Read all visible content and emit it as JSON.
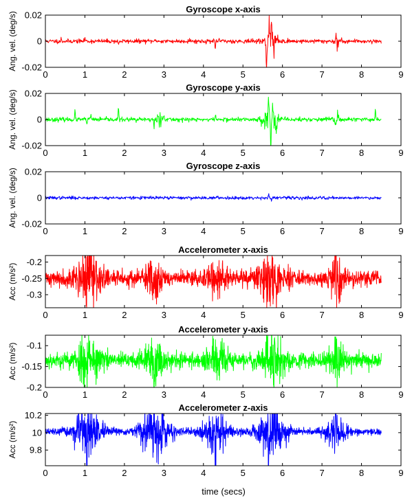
{
  "figure": {
    "xlabel": "time (secs)"
  },
  "chart_data": [
    {
      "type": "line",
      "title": "Gyroscope x-axis",
      "ylabel": "Ang. vel. (deg/s)",
      "xlim": [
        0,
        9
      ],
      "ylim": [
        -0.02,
        0.02
      ],
      "xticks": [
        "0",
        "1",
        "2",
        "3",
        "4",
        "5",
        "6",
        "7",
        "8",
        "9"
      ],
      "yticks": [
        {
          "v": 0.02,
          "label": "0.02"
        },
        {
          "v": 0,
          "label": "0"
        },
        {
          "v": -0.02,
          "label": "-0.02"
        }
      ],
      "color": "#ff0000",
      "signal": {
        "x_start": 0.0,
        "x_end": 8.5,
        "n": 900,
        "baseline": 0.0,
        "noise": 0.0008,
        "seed": 11,
        "spikes": [
          {
            "t": 0.4,
            "a": 0.002
          },
          {
            "t": 1.0,
            "a": 0.0025
          },
          {
            "t": 1.85,
            "a": -0.003
          },
          {
            "t": 2.8,
            "a": 0.0015
          },
          {
            "t": 3.65,
            "a": 0.0015
          },
          {
            "t": 4.3,
            "a": -0.007
          },
          {
            "t": 4.4,
            "a": 0.002
          },
          {
            "t": 5.6,
            "a": -0.019
          },
          {
            "t": 5.66,
            "a": 0.014
          },
          {
            "t": 5.72,
            "a": 0.018
          },
          {
            "t": 5.78,
            "a": -0.009
          },
          {
            "t": 5.85,
            "a": 0.005
          },
          {
            "t": 7.35,
            "a": 0.004
          },
          {
            "t": 7.4,
            "a": -0.004
          }
        ],
        "bursts": [
          {
            "t": 5.7,
            "w": 0.15,
            "a": 0.004
          },
          {
            "t": 7.38,
            "w": 0.08,
            "a": 0.002
          }
        ]
      }
    },
    {
      "type": "line",
      "title": "Gyroscope y-axis",
      "ylabel": "Ang. vel. (deg/s)",
      "xlim": [
        0,
        9
      ],
      "ylim": [
        -0.02,
        0.02
      ],
      "xticks": [
        "0",
        "1",
        "2",
        "3",
        "4",
        "5",
        "6",
        "7",
        "8",
        "9"
      ],
      "yticks": [
        {
          "v": 0.02,
          "label": "0.02"
        },
        {
          "v": 0,
          "label": "0"
        },
        {
          "v": -0.02,
          "label": "-0.02"
        }
      ],
      "color": "#00ff00",
      "signal": {
        "x_start": 0.0,
        "x_end": 8.5,
        "n": 900,
        "baseline": 0.0,
        "noise": 0.0008,
        "seed": 23,
        "spikes": [
          {
            "t": 0.75,
            "a": 0.006
          },
          {
            "t": 1.05,
            "a": -0.003
          },
          {
            "t": 1.15,
            "a": 0.004
          },
          {
            "t": 1.85,
            "a": 0.009
          },
          {
            "t": 2.3,
            "a": -0.002
          },
          {
            "t": 2.75,
            "a": -0.005
          },
          {
            "t": 2.9,
            "a": 0.004
          },
          {
            "t": 3.0,
            "a": 0.006
          },
          {
            "t": 4.3,
            "a": 0.004
          },
          {
            "t": 5.65,
            "a": 0.016
          },
          {
            "t": 5.7,
            "a": -0.014
          },
          {
            "t": 5.76,
            "a": 0.01
          },
          {
            "t": 5.85,
            "a": -0.005
          },
          {
            "t": 7.35,
            "a": -0.004
          },
          {
            "t": 7.4,
            "a": 0.005
          },
          {
            "t": 8.35,
            "a": 0.008
          }
        ],
        "bursts": [
          {
            "t": 2.85,
            "w": 0.12,
            "a": 0.002
          },
          {
            "t": 5.7,
            "w": 0.2,
            "a": 0.004
          },
          {
            "t": 7.38,
            "w": 0.1,
            "a": 0.002
          }
        ]
      }
    },
    {
      "type": "line",
      "title": "Gyroscope z-axis",
      "ylabel": "Ang. vel. (deg/s)",
      "xlim": [
        0,
        9
      ],
      "ylim": [
        -0.02,
        0.02
      ],
      "xticks": [
        "0",
        "1",
        "2",
        "3",
        "4",
        "5",
        "6",
        "7",
        "8",
        "9"
      ],
      "yticks": [
        {
          "v": 0.02,
          "label": "0.02"
        },
        {
          "v": 0,
          "label": "0"
        },
        {
          "v": -0.02,
          "label": "-0.02"
        }
      ],
      "color": "#0000ff",
      "signal": {
        "x_start": 0.0,
        "x_end": 8.5,
        "n": 900,
        "baseline": 0.0,
        "noise": 0.0006,
        "seed": 37,
        "spikes": [
          {
            "t": 5.65,
            "a": 0.003
          },
          {
            "t": 5.72,
            "a": -0.0025
          }
        ],
        "bursts": []
      }
    },
    {
      "type": "line",
      "title": "Accelerometer x-axis",
      "ylabel": "Acc (m/s²)",
      "xlim": [
        0,
        9
      ],
      "ylim": [
        -0.34,
        -0.18
      ],
      "xticks": [
        "0",
        "1",
        "2",
        "3",
        "4",
        "5",
        "6",
        "7",
        "8",
        "9"
      ],
      "yticks": [
        {
          "v": -0.2,
          "label": "-0.2"
        },
        {
          "v": -0.25,
          "label": "-0.25"
        },
        {
          "v": -0.3,
          "label": "-0.3"
        }
      ],
      "color": "#ff0000",
      "signal": {
        "x_start": 0.0,
        "x_end": 8.5,
        "n": 1500,
        "baseline": -0.25,
        "noise": 0.012,
        "seed": 41,
        "spikes": [
          {
            "t": 1.15,
            "a": 0.055
          },
          {
            "t": 5.85,
            "a": -0.085
          },
          {
            "t": 7.35,
            "a": 0.075
          },
          {
            "t": 7.42,
            "a": -0.06
          }
        ],
        "bursts": [
          {
            "t": 1.1,
            "w": 0.3,
            "a": 0.035
          },
          {
            "t": 2.75,
            "w": 0.2,
            "a": 0.025
          },
          {
            "t": 4.3,
            "w": 0.25,
            "a": 0.02
          },
          {
            "t": 5.7,
            "w": 0.3,
            "a": 0.03
          },
          {
            "t": 7.38,
            "w": 0.15,
            "a": 0.03
          }
        ]
      }
    },
    {
      "type": "line",
      "title": "Accelerometer y-axis",
      "ylabel": "Acc (m/s²)",
      "xlim": [
        0,
        9
      ],
      "ylim": [
        -0.2,
        -0.075
      ],
      "xticks": [
        "0",
        "1",
        "2",
        "3",
        "4",
        "5",
        "6",
        "7",
        "8",
        "9"
      ],
      "yticks": [
        {
          "v": -0.1,
          "label": "-0.1"
        },
        {
          "v": -0.15,
          "label": "-0.15"
        },
        {
          "v": -0.2,
          "label": "-0.2"
        }
      ],
      "color": "#00ff00",
      "signal": {
        "x_start": 0.0,
        "x_end": 8.5,
        "n": 1500,
        "baseline": -0.135,
        "noise": 0.009,
        "seed": 53,
        "spikes": [
          {
            "t": 1.1,
            "a": 0.055
          },
          {
            "t": 2.75,
            "a": -0.06
          },
          {
            "t": 5.72,
            "a": 0.055
          },
          {
            "t": 7.35,
            "a": 0.04
          }
        ],
        "bursts": [
          {
            "t": 1.1,
            "w": 0.3,
            "a": 0.025
          },
          {
            "t": 2.75,
            "w": 0.25,
            "a": 0.02
          },
          {
            "t": 4.3,
            "w": 0.25,
            "a": 0.018
          },
          {
            "t": 5.72,
            "w": 0.3,
            "a": 0.025
          },
          {
            "t": 7.38,
            "w": 0.2,
            "a": 0.02
          }
        ]
      }
    },
    {
      "type": "line",
      "title": "Accelerometer z-axis",
      "ylabel": "Acc (m/s²)",
      "xlim": [
        0,
        9
      ],
      "ylim": [
        9.62,
        10.22
      ],
      "xticks": [
        "0",
        "1",
        "2",
        "3",
        "4",
        "5",
        "6",
        "7",
        "8",
        "9"
      ],
      "yticks": [
        {
          "v": 10.2,
          "label": "10.2"
        },
        {
          "v": 10,
          "label": "10"
        },
        {
          "v": 9.8,
          "label": "9.8"
        }
      ],
      "color": "#0000ff",
      "signal": {
        "x_start": 0.0,
        "x_end": 8.5,
        "n": 1500,
        "baseline": 10.01,
        "noise": 0.018,
        "seed": 67,
        "spikes": [
          {
            "t": 1.05,
            "a": -0.27
          },
          {
            "t": 2.75,
            "a": 0.17
          },
          {
            "t": 4.3,
            "a": -0.27
          },
          {
            "t": 5.65,
            "a": -0.28
          },
          {
            "t": 5.8,
            "a": 0.19
          },
          {
            "t": 7.35,
            "a": 0.14
          }
        ],
        "bursts": [
          {
            "t": 1.05,
            "w": 0.35,
            "a": 0.12
          },
          {
            "t": 2.75,
            "w": 0.35,
            "a": 0.13
          },
          {
            "t": 4.3,
            "w": 0.3,
            "a": 0.12
          },
          {
            "t": 5.72,
            "w": 0.35,
            "a": 0.13
          },
          {
            "t": 7.35,
            "w": 0.25,
            "a": 0.09
          }
        ]
      }
    }
  ]
}
